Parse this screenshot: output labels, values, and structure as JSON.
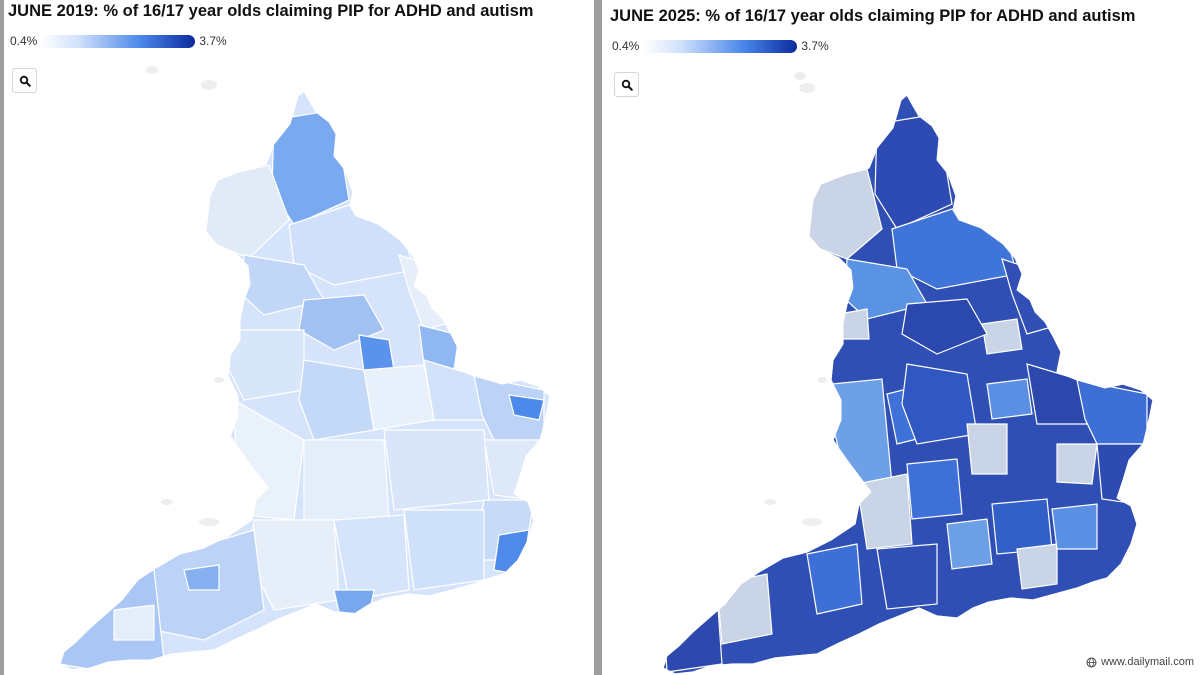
{
  "maps": [
    {
      "title": "JUNE 2019: % of 16/17 year olds claiming PIP for ADHD and autism",
      "legend": {
        "min_label": "0.4%",
        "max_label": "3.7%"
      }
    },
    {
      "title": "JUNE 2025: % of 16/17 year olds claiming PIP for ADHD and autism",
      "legend": {
        "min_label": "0.4%",
        "max_label": "3.7%"
      }
    }
  ],
  "credit": "www.dailymail.com",
  "icons": {
    "zoom": "search-icon",
    "credit": "globe-icon"
  }
}
